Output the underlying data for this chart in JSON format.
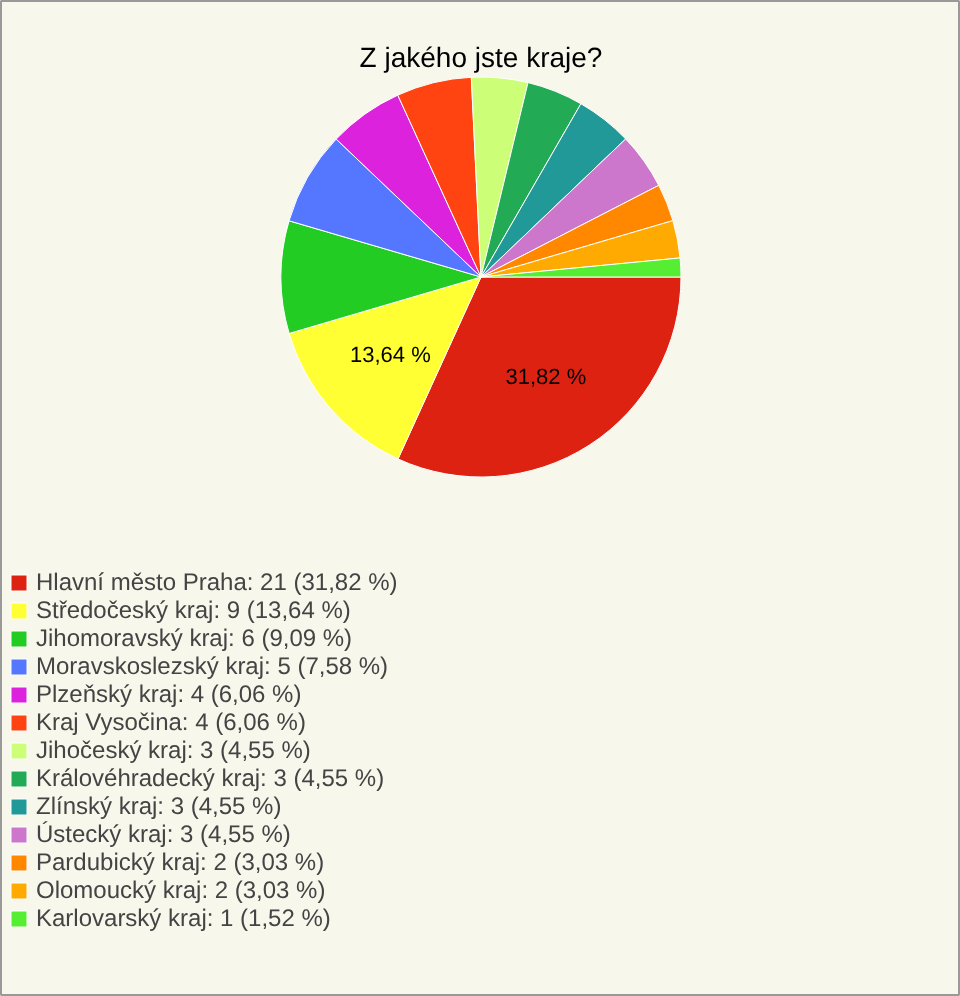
{
  "chart_data": {
    "type": "pie",
    "title": "Z jakého jste kraje?",
    "categories": [
      "Hlavní město Praha: 21 (31,82 %)",
      "Středočeský kraj: 9 (13,64 %)",
      "Jihomoravský kraj: 6 (9,09 %)",
      "Moravskoslezský kraj: 5 (7,58 %)",
      "Plzeňský kraj: 4 (6,06 %)",
      "Kraj Vysočina: 4 (6,06 %)",
      "Jihočeský kraj: 3 (4,55 %)",
      "Královéhradecký kraj: 3 (4,55 %)",
      "Zlínský kraj: 3 (4,55 %)",
      "Ústecký kraj: 3 (4,55 %)",
      "Pardubický kraj: 2 (3,03 %)",
      "Olomoucký kraj: 2 (3,03 %)",
      "Karlovarský kraj: 1 (1,52 %)"
    ],
    "values": [
      31.82,
      13.64,
      9.09,
      7.58,
      6.06,
      6.06,
      4.55,
      4.55,
      4.55,
      4.55,
      3.03,
      3.03,
      1.52
    ],
    "colors": [
      "#dd2211",
      "#ffff33",
      "#22cc22",
      "#5577ff",
      "#dd22dd",
      "#ff4411",
      "#ccff77",
      "#22aa55",
      "#229999",
      "#cc77cc",
      "#ff8800",
      "#ffaa00",
      "#55ee33"
    ],
    "value_labels": [
      "31,82 %",
      "13,64 %",
      null,
      null,
      null,
      null,
      null,
      null,
      null,
      null,
      null,
      null,
      null
    ],
    "legend": "bottom left"
  }
}
